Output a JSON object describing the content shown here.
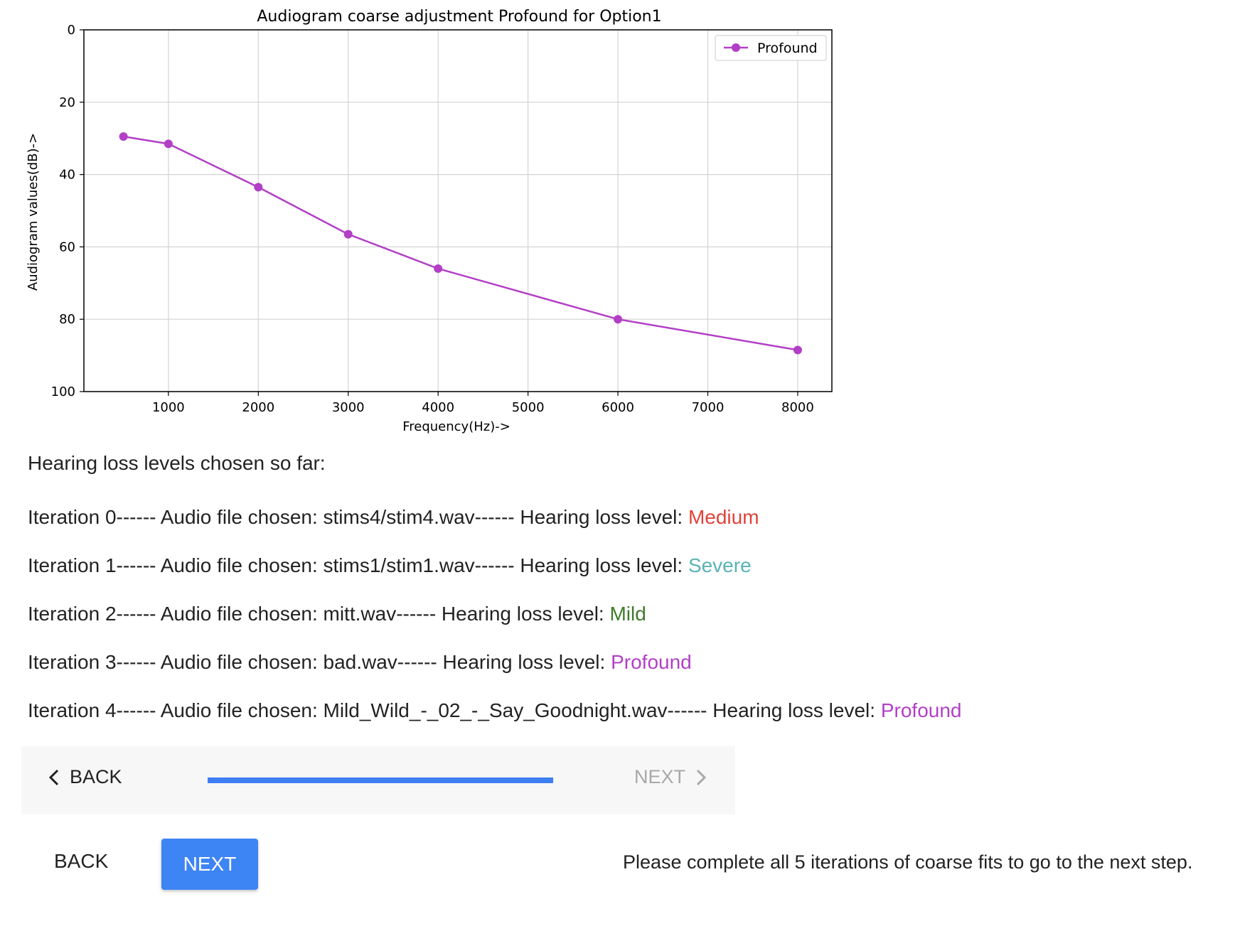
{
  "chart_data": {
    "type": "line",
    "title": "Audiogram coarse adjustment Profound for Option1",
    "xlabel": "Frequency(Hz)->",
    "ylabel": "Audiogram values(dB)->",
    "xlim": [
      60,
      8380
    ],
    "ylim": [
      100,
      0
    ],
    "y_inverted": true,
    "grid": true,
    "xticks": [
      1000,
      2000,
      3000,
      4000,
      5000,
      6000,
      7000,
      8000
    ],
    "yticks": [
      0,
      20,
      40,
      60,
      80,
      100
    ],
    "legend_position": "top-right",
    "series": [
      {
        "name": "Profound",
        "color": "#b23fc6",
        "x": [
          500,
          1000,
          2000,
          3000,
          4000,
          6000,
          8000
        ],
        "y": [
          29.5,
          31.5,
          43.5,
          56.5,
          66,
          80,
          88.5
        ]
      }
    ]
  },
  "summary": {
    "heading": "Hearing loss levels chosen so far:",
    "iterations": [
      {
        "prefix": "Iteration 0------ Audio file chosen: stims4/stim4.wav------ Hearing loss level: ",
        "level": "Medium"
      },
      {
        "prefix": "Iteration 1------ Audio file chosen: stims1/stim1.wav------ Hearing loss level: ",
        "level": "Severe"
      },
      {
        "prefix": "Iteration 2------ Audio file chosen: mitt.wav------ Hearing loss level: ",
        "level": "Mild"
      },
      {
        "prefix": "Iteration 3------ Audio file chosen: bad.wav------ Hearing loss level: ",
        "level": "Profound"
      },
      {
        "prefix": "Iteration 4------ Audio file chosen: Mild_Wild_-_02_-_Say_Goodnight.wav------ Hearing loss level: ",
        "level": "Profound"
      }
    ]
  },
  "stepper": {
    "back_label": "BACK",
    "next_label": "NEXT",
    "progress_fraction": 1.0
  },
  "actions": {
    "back_label": "BACK",
    "next_label": "NEXT",
    "hint": "Please complete all 5 iterations of coarse fits to go to the next step."
  },
  "colors": {
    "accent": "#3d84f5",
    "medium": "#e0433a",
    "severe": "#5ab3b5",
    "mild": "#3f7a2a",
    "profound": "#b23fc6"
  }
}
